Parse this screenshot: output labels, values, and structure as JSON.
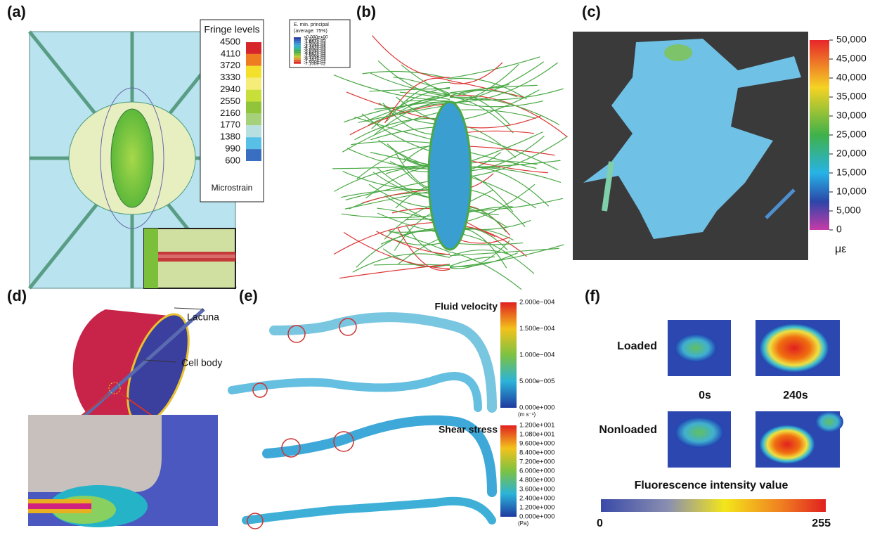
{
  "panels": [
    {
      "label": "(a)",
      "legend_title": "Fringe levels",
      "levels": [
        "4500",
        "4110",
        "3720",
        "3330",
        "2940",
        "2550",
        "2160",
        "1770",
        "1380",
        "990",
        "600"
      ],
      "unit": "Microstrain"
    },
    {
      "label": "(b)",
      "legend_title": "E. min. principal",
      "legend_subtitle": "(average: 75%)",
      "levels": [
        "+0.000e+00",
        "-8.333e-04",
        "-1.667e-03",
        "-2.500e-03",
        "-3.333e-03",
        "-4.167e-03",
        "-5.000e-03",
        "-5.833e-03",
        "-6.667e-03",
        "-7.500e-03",
        "-8.333e-03",
        "-9.167e-03",
        "-1.000e-02",
        "-7.100e-02"
      ]
    },
    {
      "label": "(c)",
      "levels": [
        "50,000",
        "45,000",
        "40,000",
        "35,000",
        "30,000",
        "25,000",
        "20,000",
        "15,000",
        "10,000",
        "5,000",
        "0"
      ],
      "unit": "με"
    },
    {
      "label": "(d)",
      "annotations": [
        "Lacuna",
        "Cell body"
      ]
    },
    {
      "label": "(e)",
      "bars": [
        {
          "title": "Fluid velocity",
          "levels": [
            "2.000e−004",
            "1.500e−004",
            "1.000e−004",
            "5.000e−005",
            "0.000e+000"
          ],
          "unit": "(m s⁻¹)"
        },
        {
          "title": "Shear stress",
          "levels": [
            "1.200e+001",
            "1.080e+001",
            "9.600e+000",
            "8.400e+000",
            "7.200e+000",
            "6.000e+000",
            "4.800e+000",
            "3.600e+000",
            "2.400e+000",
            "1.200e+000",
            "0.000e+000"
          ],
          "unit": "(Pa)"
        }
      ]
    },
    {
      "label": "(f)",
      "rows": [
        "Loaded",
        "Nonloaded"
      ],
      "times": [
        "0s",
        "240s"
      ],
      "bar_title": "Fluorescence intensity value",
      "bar_min": "0",
      "bar_max": "255"
    }
  ]
}
